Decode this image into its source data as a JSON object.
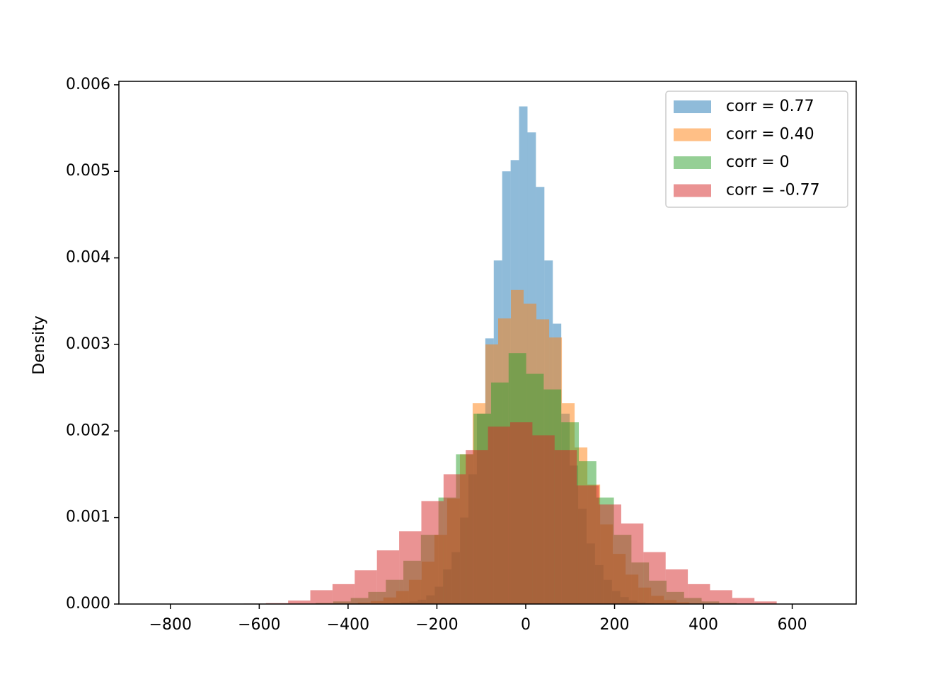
{
  "chart_data": {
    "type": "histogram",
    "ylabel": "Density",
    "xlim": [
      -916,
      744
    ],
    "ylim": [
      0,
      0.00604
    ],
    "xticks": [
      {
        "value": -800,
        "label": "−800"
      },
      {
        "value": -600,
        "label": "−600"
      },
      {
        "value": -400,
        "label": "−400"
      },
      {
        "value": -200,
        "label": "−200"
      },
      0,
      200,
      400,
      600
    ],
    "yticks": [
      {
        "value": 0,
        "label": "0.000"
      },
      0.001,
      0.002,
      0.003,
      0.004,
      0.005,
      0.006
    ],
    "legend": "upper right",
    "alpha": 0.5,
    "series": [
      {
        "name": "corr = 0.77",
        "color": "#1f77b4",
        "bins": [
          -300,
          -281,
          -262,
          -243,
          -224,
          -205,
          -186,
          -167,
          -148,
          -129,
          -110,
          -91,
          -72,
          -53,
          -34,
          -15,
          4,
          23,
          42,
          61,
          80,
          99,
          118,
          137,
          156,
          175,
          194,
          213,
          232,
          251,
          270,
          289
        ],
        "values": [
          1e-05,
          2e-05,
          3e-05,
          5e-05,
          0.0001,
          0.0002,
          0.0004,
          0.0006,
          0.001,
          0.0015,
          0.0022,
          0.00307,
          0.00397,
          0.005,
          0.00513,
          0.00575,
          0.00545,
          0.00482,
          0.00397,
          0.00324,
          0.0022,
          0.0016,
          0.0011,
          0.0007,
          0.00045,
          0.00028,
          0.00015,
          8e-05,
          4e-05,
          2e-05,
          1e-05
        ]
      },
      {
        "name": "corr = 0.40",
        "color": "#ff7f0e",
        "bins": [
          -463.9,
          -435.2,
          -406.5,
          -377.8,
          -349.1,
          -320.4,
          -291.7,
          -263.0,
          -234.3,
          -205.6,
          -176.9,
          -148.2,
          -119.5,
          -90.8,
          -62.1,
          -33.4,
          -4.7,
          24.0,
          52.7,
          81.4,
          110.1,
          138.8,
          167.5,
          196.2,
          224.9,
          253.6,
          282.3,
          311.0,
          339.7,
          368.4,
          397.1,
          425.8,
          454.5
        ],
        "values": [
          1e-06,
          2e-06,
          6e-06,
          1.6e-05,
          3.5e-05,
          7.6e-05,
          0.00015,
          0.00028,
          0.00049,
          0.0008,
          0.00122,
          0.00173,
          0.00232,
          0.003,
          0.0033,
          0.00363,
          0.00347,
          0.00329,
          0.00308,
          0.00232,
          0.00181,
          0.00138,
          0.00092,
          0.00058,
          0.00034,
          0.00019,
          9.5e-05,
          4.6e-05,
          2e-05,
          8e-06,
          3e-06,
          1e-06
        ]
      },
      {
        "name": "corr = 0",
        "color": "#2ca02c",
        "bins": [
          -552,
          -512.5,
          -473,
          -433.5,
          -394,
          -354.5,
          -315,
          -275.5,
          -236,
          -196.5,
          -157,
          -117.5,
          -78,
          -38.5,
          1,
          40.5,
          80,
          119.5,
          159,
          198.5,
          238,
          277.5,
          317,
          356.5,
          396,
          435.5,
          475,
          514.5
        ],
        "values": [
          2e-06,
          5e-06,
          1.2e-05,
          3e-05,
          7e-05,
          0.00014,
          0.00028,
          0.0005,
          0.0008,
          0.00123,
          0.00173,
          0.0022,
          0.00256,
          0.0029,
          0.00266,
          0.00248,
          0.0021,
          0.00165,
          0.00123,
          0.0008,
          0.00048,
          0.00027,
          0.00014,
          7e-05,
          3e-05,
          1.2e-05,
          4e-06
        ]
      },
      {
        "name": "corr = -0.77",
        "color": "#d62728",
        "bins": [
          -635,
          -585,
          -535,
          -485,
          -435,
          -385,
          -335,
          -285,
          -235,
          -185,
          -135,
          -85,
          -35,
          15,
          65,
          115,
          165,
          215,
          265,
          315,
          365,
          415,
          465,
          515,
          565
        ],
        "values": [
          5e-06,
          1e-05,
          4e-05,
          0.00016,
          0.00023,
          0.00039,
          0.00062,
          0.00084,
          0.00119,
          0.0015,
          0.00178,
          0.00205,
          0.0021,
          0.00195,
          0.00178,
          0.00137,
          0.00115,
          0.00093,
          0.0006,
          0.0004,
          0.00023,
          0.00016,
          7e-05,
          3e-05
        ]
      }
    ]
  }
}
